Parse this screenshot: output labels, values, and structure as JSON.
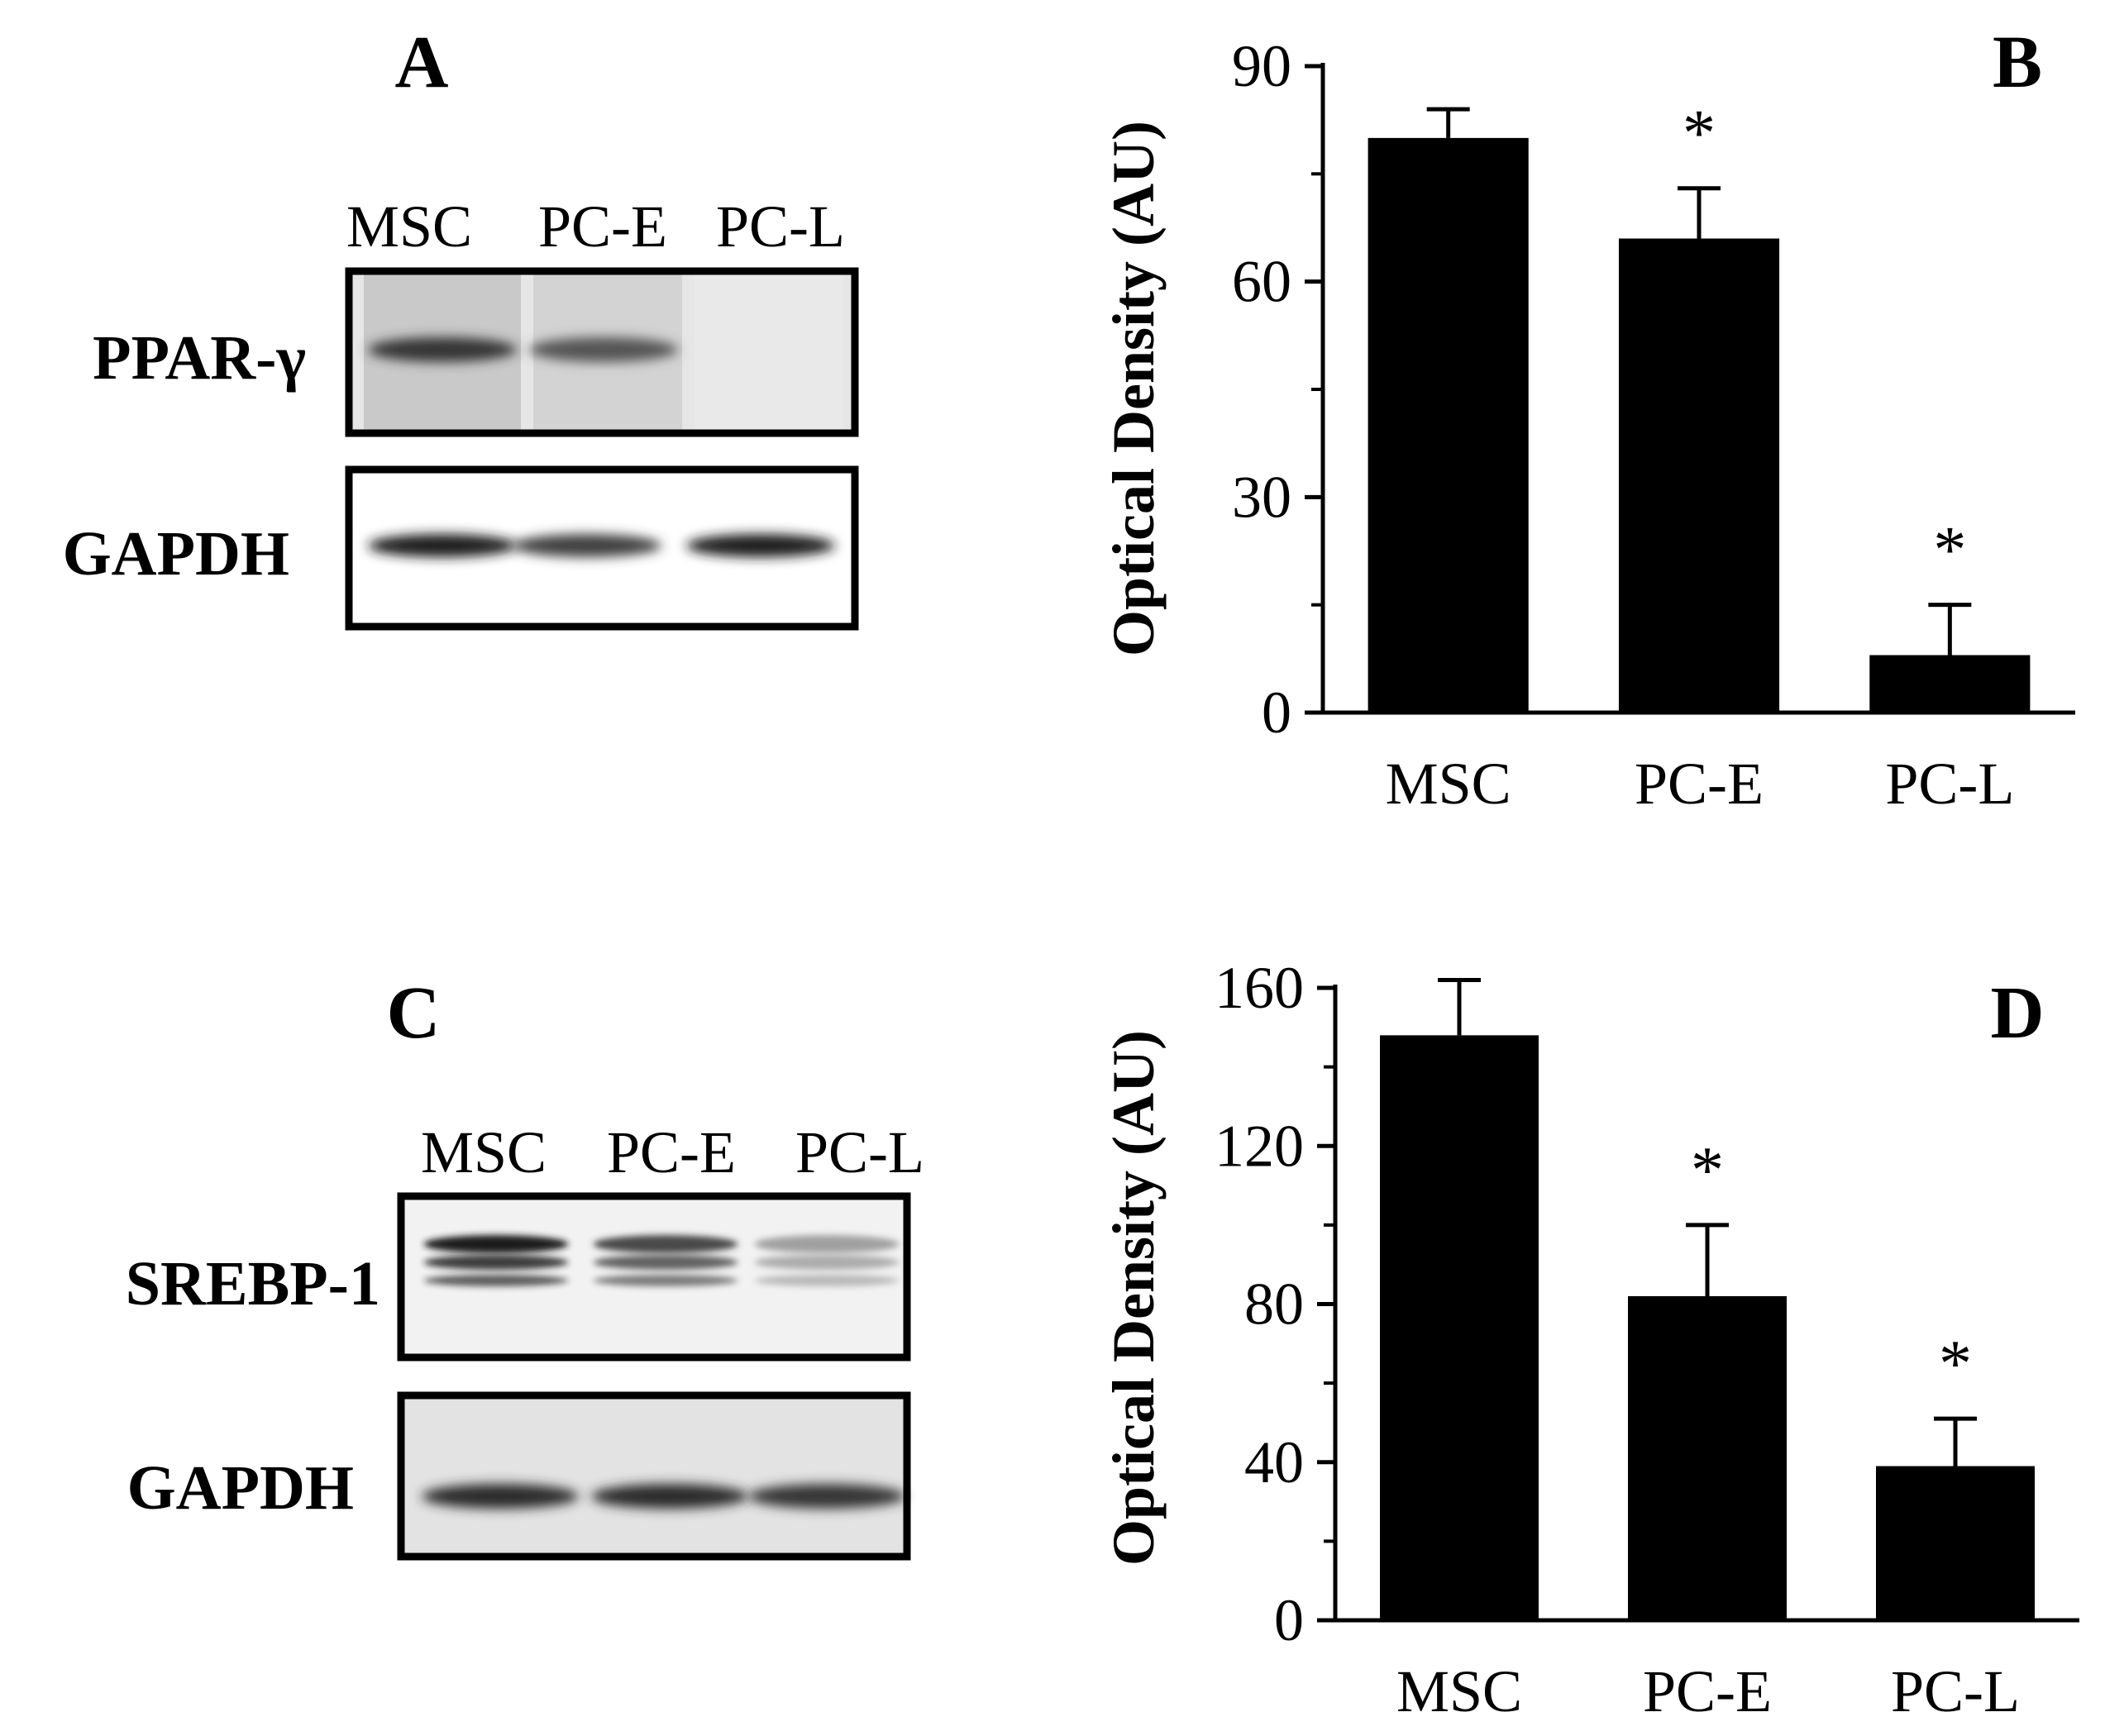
{
  "panels": {
    "A": {
      "letter": "A",
      "lanes": [
        "MSC",
        "PC-E",
        "PC-L"
      ],
      "blots": [
        {
          "label": "PPAR-γ",
          "band_intensity": [
            0.85,
            0.7,
            0.0
          ]
        },
        {
          "label": "GAPDH",
          "band_intensity": [
            0.95,
            0.8,
            0.95
          ]
        }
      ]
    },
    "C": {
      "letter": "C",
      "lanes": [
        "MSC",
        "PC-E",
        "PC-L"
      ],
      "blots": [
        {
          "label": "SREBP-1",
          "band_intensity": [
            0.95,
            0.75,
            0.35
          ]
        },
        {
          "label": "GAPDH",
          "band_intensity": [
            0.9,
            0.9,
            0.85
          ]
        }
      ]
    }
  },
  "chart_data": [
    {
      "panel": "B",
      "type": "bar",
      "categories": [
        "MSC",
        "PC-E",
        "PC-L"
      ],
      "values": [
        80,
        66,
        8
      ],
      "error": [
        4,
        7,
        7
      ],
      "significance": [
        "",
        "*",
        "*"
      ],
      "ylabel": "Optical Density (AU)",
      "ylim": [
        0,
        90
      ],
      "yticks": [
        "0",
        "30",
        "60",
        "90"
      ],
      "grid": false,
      "bar_color": "#000000"
    },
    {
      "panel": "D",
      "type": "bar",
      "categories": [
        "MSC",
        "PC-E",
        "PC-L"
      ],
      "values": [
        148,
        82,
        39
      ],
      "error": [
        14,
        18,
        12
      ],
      "significance": [
        "",
        "*",
        "*"
      ],
      "ylabel": "Optical Density (AU)",
      "ylim": [
        0,
        160
      ],
      "yticks": [
        "0",
        "40",
        "80",
        "120",
        "160"
      ],
      "grid": false,
      "bar_color": "#000000"
    }
  ]
}
